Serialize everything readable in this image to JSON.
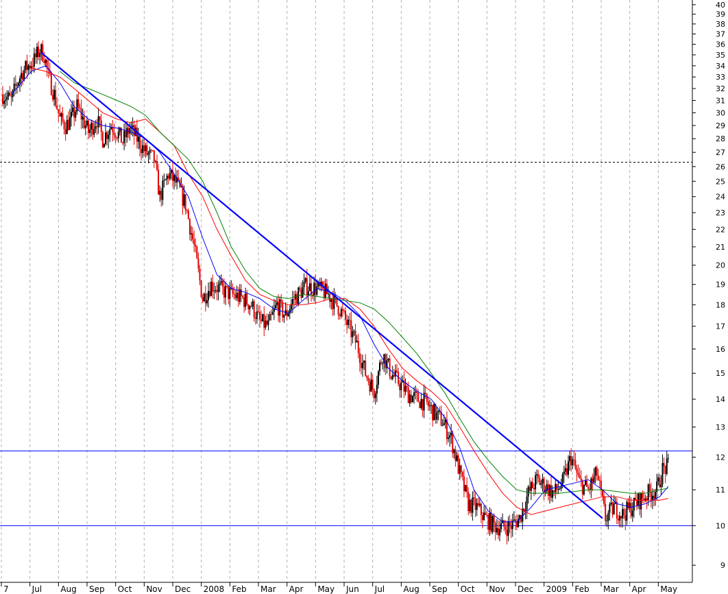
{
  "chart_data": {
    "type": "candlestick",
    "title": "",
    "xlabel": "",
    "ylabel": "",
    "y_scale": "log",
    "ylim": [
      8.6,
      40.5
    ],
    "y_ticks": [
      9,
      10,
      11,
      12,
      13,
      14,
      15,
      16,
      17,
      18,
      19,
      20,
      21,
      22,
      23,
      24,
      25,
      26,
      27,
      28,
      29,
      30,
      31,
      32,
      33,
      34,
      35,
      36,
      37,
      38,
      39,
      40
    ],
    "x_labels": [
      {
        "label": "7",
        "pos": 0
      },
      {
        "label": "Jul",
        "pos": 1
      },
      {
        "label": "Aug",
        "pos": 2
      },
      {
        "label": "Sep",
        "pos": 3
      },
      {
        "label": "Oct",
        "pos": 4
      },
      {
        "label": "Nov",
        "pos": 5
      },
      {
        "label": "Dec",
        "pos": 6
      },
      {
        "label": "2008",
        "pos": 7
      },
      {
        "label": "Feb",
        "pos": 8
      },
      {
        "label": "Mar",
        "pos": 9
      },
      {
        "label": "Apr",
        "pos": 10
      },
      {
        "label": "May",
        "pos": 11
      },
      {
        "label": "Jun",
        "pos": 12
      },
      {
        "label": "Jul",
        "pos": 13
      },
      {
        "label": "Aug",
        "pos": 14
      },
      {
        "label": "Sep",
        "pos": 15
      },
      {
        "label": "Oct",
        "pos": 16
      },
      {
        "label": "Nov",
        "pos": 17
      },
      {
        "label": "Dec",
        "pos": 18
      },
      {
        "label": "2009",
        "pos": 19
      },
      {
        "label": "Feb",
        "pos": 20
      },
      {
        "label": "Mar",
        "pos": 21
      },
      {
        "label": "Apr",
        "pos": 22
      },
      {
        "label": "May",
        "pos": 23
      }
    ],
    "x_range": [
      0,
      24
    ],
    "grid": "vertical dashed",
    "price_path": [
      [
        0.0,
        31.5
      ],
      [
        0.3,
        31.0
      ],
      [
        0.5,
        32.5
      ],
      [
        0.7,
        33.5
      ],
      [
        0.9,
        34.0
      ],
      [
        1.1,
        34.5
      ],
      [
        1.3,
        35.5
      ],
      [
        1.45,
        35.0
      ],
      [
        1.6,
        33.0
      ],
      [
        1.8,
        31.5
      ],
      [
        2.0,
        29.5
      ],
      [
        2.2,
        29.0
      ],
      [
        2.4,
        29.5
      ],
      [
        2.6,
        30.5
      ],
      [
        2.8,
        29.5
      ],
      [
        3.0,
        28.5
      ],
      [
        3.3,
        29.5
      ],
      [
        3.5,
        28.0
      ],
      [
        3.8,
        29.0
      ],
      [
        4.0,
        28.5
      ],
      [
        4.2,
        27.8
      ],
      [
        4.45,
        28.8
      ],
      [
        4.7,
        28.0
      ],
      [
        5.0,
        27.0
      ],
      [
        5.3,
        26.5
      ],
      [
        5.5,
        24.0
      ],
      [
        5.8,
        25.5
      ],
      [
        6.1,
        24.8
      ],
      [
        6.4,
        23.5
      ],
      [
        6.7,
        21.0
      ],
      [
        7.0,
        18.3
      ],
      [
        7.3,
        19.0
      ],
      [
        7.7,
        18.7
      ],
      [
        8.0,
        18.5
      ],
      [
        8.4,
        18.3
      ],
      [
        8.7,
        18.0
      ],
      [
        9.0,
        17.2
      ],
      [
        9.3,
        17.0
      ],
      [
        9.6,
        18.0
      ],
      [
        9.9,
        17.5
      ],
      [
        10.2,
        18.3
      ],
      [
        10.6,
        18.9
      ],
      [
        11.0,
        18.8
      ],
      [
        11.4,
        18.5
      ],
      [
        11.8,
        17.8
      ],
      [
        12.1,
        17.0
      ],
      [
        12.4,
        16.2
      ],
      [
        12.7,
        15.0
      ],
      [
        13.0,
        14.3
      ],
      [
        13.3,
        15.8
      ],
      [
        13.6,
        15.0
      ],
      [
        13.9,
        14.6
      ],
      [
        14.2,
        14.2
      ],
      [
        14.5,
        14.0
      ],
      [
        14.8,
        13.9
      ],
      [
        15.1,
        13.5
      ],
      [
        15.4,
        13.2
      ],
      [
        15.7,
        12.6
      ],
      [
        16.0,
        11.5
      ],
      [
        16.3,
        10.6
      ],
      [
        16.6,
        10.5
      ],
      [
        16.9,
        10.2
      ],
      [
        17.2,
        10.0
      ],
      [
        17.5,
        9.95
      ],
      [
        17.8,
        10.0
      ],
      [
        18.1,
        10.2
      ],
      [
        18.4,
        10.9
      ],
      [
        18.7,
        11.3
      ],
      [
        19.0,
        11.1
      ],
      [
        19.3,
        10.9
      ],
      [
        19.6,
        11.2
      ],
      [
        19.9,
        12.0
      ],
      [
        20.2,
        11.2
      ],
      [
        20.5,
        11.0
      ],
      [
        20.8,
        11.5
      ],
      [
        21.1,
        10.2
      ],
      [
        21.4,
        10.5
      ],
      [
        21.7,
        10.3
      ],
      [
        22.0,
        10.5
      ],
      [
        22.3,
        10.7
      ],
      [
        22.6,
        10.9
      ],
      [
        22.9,
        11.0
      ],
      [
        23.1,
        11.6
      ],
      [
        23.3,
        11.7
      ]
    ],
    "series": [
      {
        "color": "#0000ff",
        "values": [
          [
            0.3,
            31.5
          ],
          [
            1.0,
            33.5
          ],
          [
            1.5,
            34.0
          ],
          [
            2.0,
            32.5
          ],
          [
            2.5,
            30.5
          ],
          [
            3.0,
            29.5
          ],
          [
            3.5,
            29.0
          ],
          [
            4.0,
            28.8
          ],
          [
            4.5,
            28.5
          ],
          [
            5.0,
            28.0
          ],
          [
            5.5,
            27.0
          ],
          [
            6.0,
            25.5
          ],
          [
            6.5,
            24.0
          ],
          [
            7.0,
            21.5
          ],
          [
            7.5,
            19.5
          ],
          [
            8.0,
            18.8
          ],
          [
            8.5,
            18.6
          ],
          [
            9.0,
            18.3
          ],
          [
            9.5,
            17.8
          ],
          [
            10.0,
            17.6
          ],
          [
            10.5,
            18.2
          ],
          [
            11.0,
            18.8
          ],
          [
            11.5,
            18.6
          ],
          [
            12.0,
            18.2
          ],
          [
            12.5,
            17.5
          ],
          [
            13.0,
            16.2
          ],
          [
            13.5,
            15.2
          ],
          [
            14.0,
            14.7
          ],
          [
            14.5,
            14.3
          ],
          [
            15.0,
            14.0
          ],
          [
            15.5,
            13.3
          ],
          [
            16.0,
            12.3
          ],
          [
            16.5,
            11.0
          ],
          [
            17.0,
            10.4
          ],
          [
            17.5,
            10.1
          ],
          [
            18.0,
            10.1
          ],
          [
            18.5,
            10.5
          ],
          [
            19.0,
            11.0
          ],
          [
            19.5,
            11.1
          ],
          [
            20.0,
            11.2
          ],
          [
            20.5,
            11.3
          ],
          [
            21.0,
            11.0
          ],
          [
            21.5,
            10.6
          ],
          [
            22.0,
            10.5
          ],
          [
            22.5,
            10.6
          ],
          [
            23.0,
            10.8
          ],
          [
            23.3,
            11.1
          ]
        ]
      },
      {
        "color": "#ff0000",
        "values": [
          [
            1.0,
            33.8
          ],
          [
            1.5,
            33.5
          ],
          [
            2.0,
            33.0
          ],
          [
            2.5,
            32.0
          ],
          [
            3.0,
            31.0
          ],
          [
            3.5,
            30.0
          ],
          [
            4.0,
            29.5
          ],
          [
            4.5,
            29.2
          ],
          [
            5.0,
            29.5
          ],
          [
            5.5,
            28.5
          ],
          [
            6.0,
            27.5
          ],
          [
            6.5,
            25.5
          ],
          [
            7.0,
            24.0
          ],
          [
            7.5,
            22.0
          ],
          [
            8.0,
            20.5
          ],
          [
            8.5,
            19.2
          ],
          [
            9.0,
            18.5
          ],
          [
            9.5,
            18.2
          ],
          [
            10.0,
            18.0
          ],
          [
            10.5,
            18.0
          ],
          [
            11.0,
            18.1
          ],
          [
            11.5,
            18.3
          ],
          [
            12.0,
            18.3
          ],
          [
            12.5,
            17.8
          ],
          [
            13.0,
            17.0
          ],
          [
            13.5,
            16.0
          ],
          [
            14.0,
            15.2
          ],
          [
            14.5,
            14.7
          ],
          [
            15.0,
            14.3
          ],
          [
            15.5,
            13.8
          ],
          [
            16.0,
            13.0
          ],
          [
            16.5,
            12.2
          ],
          [
            17.0,
            11.5
          ],
          [
            17.5,
            10.9
          ],
          [
            18.0,
            10.5
          ],
          [
            18.5,
            10.3
          ],
          [
            19.0,
            10.4
          ],
          [
            19.5,
            10.5
          ],
          [
            20.0,
            10.6
          ],
          [
            20.5,
            10.7
          ],
          [
            21.0,
            10.8
          ],
          [
            21.5,
            10.8
          ],
          [
            22.0,
            10.7
          ],
          [
            22.5,
            10.7
          ],
          [
            23.0,
            10.7
          ],
          [
            23.3,
            10.75
          ]
        ]
      },
      {
        "color": "#008000",
        "values": [
          [
            2.0,
            33.5
          ],
          [
            2.5,
            32.5
          ],
          [
            3.0,
            32.0
          ],
          [
            3.5,
            31.5
          ],
          [
            4.0,
            31.0
          ],
          [
            4.5,
            30.5
          ],
          [
            5.0,
            29.8
          ],
          [
            5.5,
            28.5
          ],
          [
            6.0,
            27.5
          ],
          [
            6.5,
            26.5
          ],
          [
            7.0,
            25.0
          ],
          [
            7.5,
            23.0
          ],
          [
            8.0,
            21.0
          ],
          [
            8.5,
            19.7
          ],
          [
            9.0,
            18.8
          ],
          [
            9.5,
            18.4
          ],
          [
            10.0,
            18.3
          ],
          [
            10.5,
            18.5
          ],
          [
            11.0,
            18.4
          ],
          [
            11.5,
            18.3
          ],
          [
            12.0,
            18.2
          ],
          [
            12.5,
            18.1
          ],
          [
            13.0,
            17.8
          ],
          [
            13.5,
            17.2
          ],
          [
            14.0,
            16.5
          ],
          [
            14.5,
            15.8
          ],
          [
            15.0,
            15.0
          ],
          [
            15.5,
            14.2
          ],
          [
            16.0,
            13.3
          ],
          [
            16.5,
            12.5
          ],
          [
            17.0,
            11.9
          ],
          [
            17.5,
            11.4
          ],
          [
            18.0,
            11.0
          ],
          [
            18.5,
            10.9
          ],
          [
            19.0,
            10.9
          ],
          [
            19.5,
            10.9
          ],
          [
            20.0,
            10.95
          ],
          [
            20.5,
            11.0
          ],
          [
            21.0,
            11.0
          ],
          [
            21.5,
            10.95
          ],
          [
            22.0,
            10.9
          ],
          [
            22.5,
            10.9
          ],
          [
            23.0,
            11.0
          ],
          [
            23.3,
            11.05
          ]
        ]
      }
    ],
    "trendlines": [
      {
        "color": "#0000ff",
        "from": [
          1.35,
          35.2
        ],
        "to": [
          21.0,
          10.2
        ]
      }
    ],
    "horizontal_lines": [
      {
        "y": 12.2,
        "style": "solid",
        "color": "#0000ff"
      },
      {
        "y": 10.0,
        "style": "solid",
        "color": "#0000ff"
      },
      {
        "y": 26.3,
        "style": "dotted",
        "color": "#000000"
      }
    ]
  }
}
